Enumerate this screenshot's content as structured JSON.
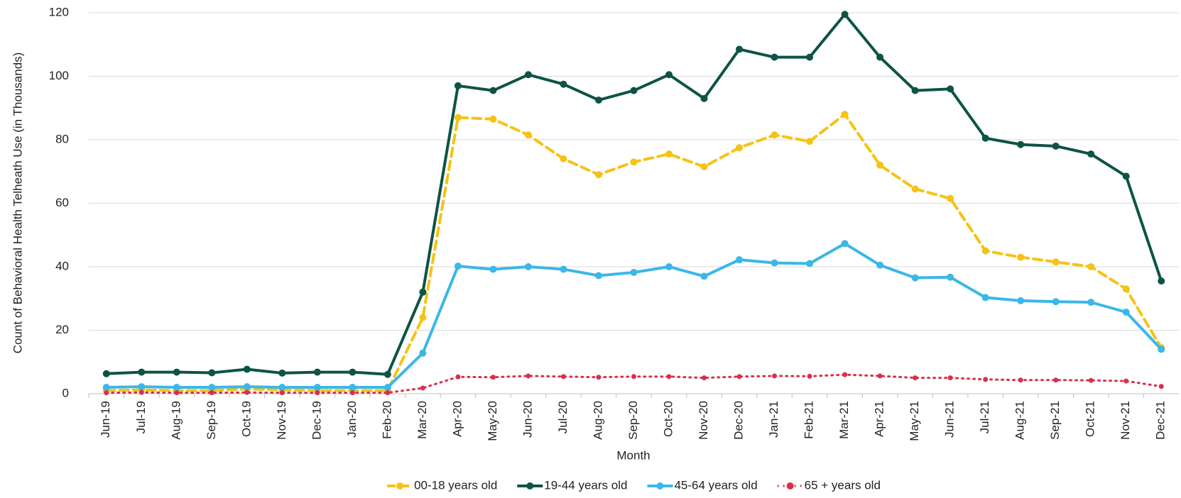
{
  "chart_data": {
    "type": "line",
    "x_label": "Month",
    "y_label": "Count of  Behavioral Health Telheath Use (in Thousands)",
    "categories": [
      "Jun-19",
      "Jul-19",
      "Aug-19",
      "Sep-19",
      "Oct-19",
      "Nov-19",
      "Dec-19",
      "Jan-20",
      "Feb-20",
      "Mar-20",
      "Apr-20",
      "May-20",
      "Jun-20",
      "Jul-20",
      "Aug-20",
      "Sep-20",
      "Oct-20",
      "Nov-20",
      "Dec-20",
      "Jan-21",
      "Feb-21",
      "Mar-21",
      "Apr-21",
      "May-21",
      "Jun-21",
      "Jul-21",
      "Aug-21",
      "Sep-21",
      "Oct-21",
      "Nov-21",
      "Dec-21"
    ],
    "series": [
      {
        "name": "00-18 years old",
        "color": "#f5c314",
        "dash": "dashed",
        "values": [
          1.0,
          1.2,
          1.0,
          1.0,
          1.5,
          1.2,
          1.0,
          1.0,
          1.0,
          24,
          87,
          86.5,
          81.5,
          74,
          69,
          73,
          75.5,
          71.5,
          77.5,
          81.5,
          79.5,
          88,
          72,
          64.5,
          61.5,
          45,
          43,
          41.5,
          40,
          33,
          14.5
        ]
      },
      {
        "name": "19-44 years old",
        "color": "#0e5345",
        "dash": "solid",
        "values": [
          6.3,
          6.8,
          6.8,
          6.6,
          7.7,
          6.5,
          6.8,
          6.8,
          6.1,
          32,
          97,
          95.5,
          100.5,
          97.5,
          92.5,
          95.5,
          100.5,
          93,
          108.5,
          106,
          106,
          119.5,
          106,
          95.5,
          96,
          80.5,
          78.5,
          78,
          75.5,
          68.5,
          35.5
        ]
      },
      {
        "name": "45-64 years old",
        "color": "#3bb7e8",
        "dash": "solid",
        "values": [
          2.0,
          2.2,
          2.0,
          2.0,
          2.2,
          2.0,
          2.0,
          2.0,
          2.0,
          12.8,
          40.2,
          39.2,
          40,
          39.2,
          37.2,
          38.2,
          40,
          37,
          42.2,
          41.2,
          41,
          47.3,
          40.5,
          36.5,
          36.7,
          30.3,
          29.3,
          29,
          28.8,
          25.7,
          14
        ]
      },
      {
        "name": "65 + years old",
        "color": "#d9304a",
        "dash": "dotted",
        "values": [
          0.3,
          0.4,
          0.3,
          0.3,
          0.4,
          0.3,
          0.3,
          0.3,
          0.3,
          1.8,
          5.3,
          5.2,
          5.6,
          5.4,
          5.2,
          5.4,
          5.4,
          5.0,
          5.4,
          5.6,
          5.5,
          6.0,
          5.6,
          5.0,
          5.0,
          4.5,
          4.3,
          4.3,
          4.2,
          4.0,
          2.3
        ]
      }
    ],
    "ylim": [
      0,
      120
    ],
    "yticks": [
      0,
      20,
      40,
      60,
      80,
      100,
      120
    ],
    "grid": true,
    "legend": "bottom"
  }
}
